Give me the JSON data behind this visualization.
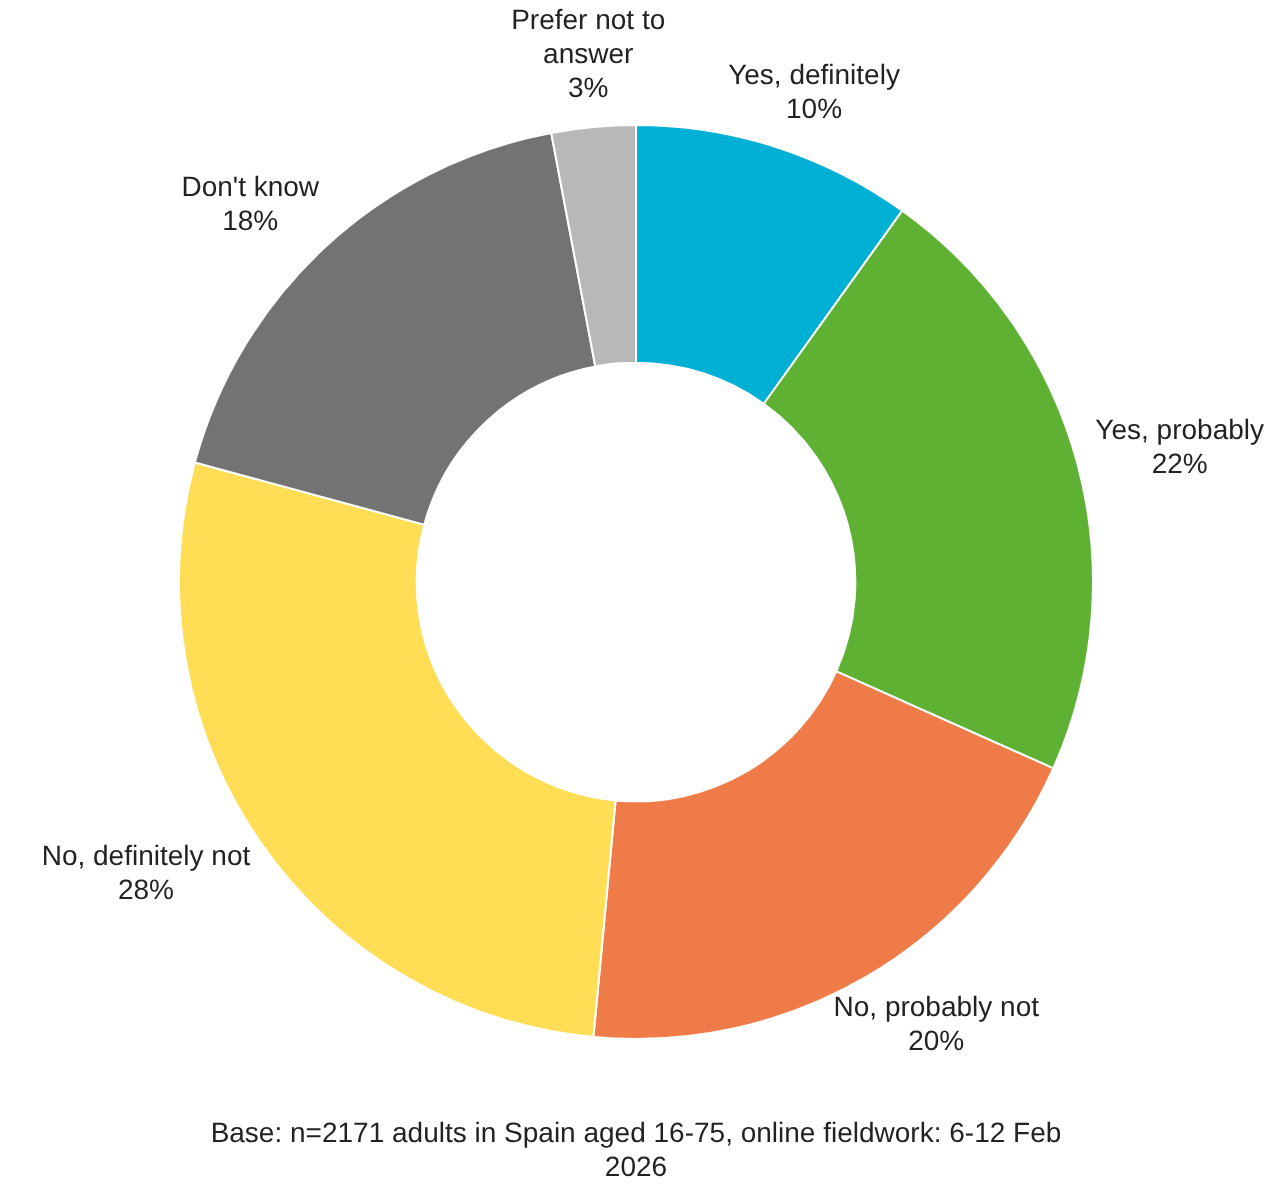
{
  "chart_data": {
    "type": "donut",
    "categories": [
      "Yes, definitely",
      "Yes, probably",
      "No, probably not",
      "No, definitely not",
      "Don't know",
      "Prefer not to answer"
    ],
    "values": [
      10,
      22,
      20,
      28,
      18,
      3
    ],
    "colors": [
      "#00b0d4",
      "#5fb134",
      "#ef7c48",
      "#ffdd55",
      "#737373",
      "#b8b8b8"
    ],
    "value_labels": [
      "10%",
      "22%",
      "20%",
      "28%",
      "18%",
      "3%"
    ],
    "legend": false,
    "annotations": [
      "Base: n=2171 adults in Spain aged 16-75, online fieldwork: 6-12 Feb 2026"
    ]
  }
}
